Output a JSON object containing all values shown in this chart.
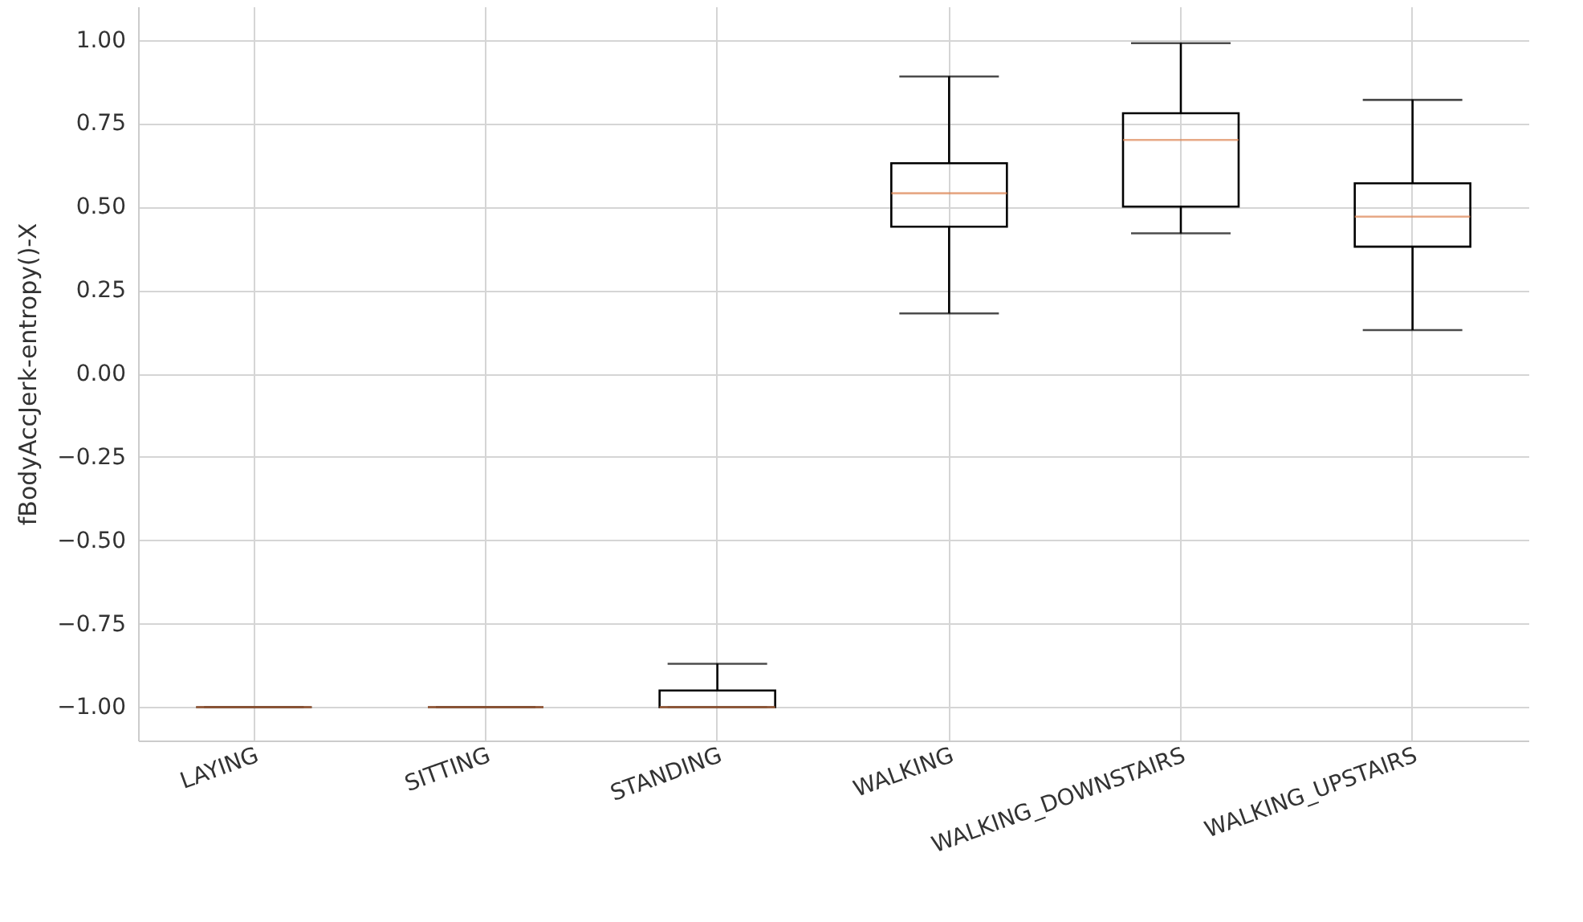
{
  "chart_data": {
    "type": "box",
    "ylabel": "fBodyAccJerk-entropy()-X",
    "categories": [
      "LAYING",
      "SITTING",
      "STANDING",
      "WALKING",
      "WALKING_DOWNSTAIRS",
      "WALKING_UPSTAIRS"
    ],
    "series": [
      {
        "color": "#dd8452",
        "boxes": [
          {
            "low": -1,
            "q1": -1,
            "median": -1,
            "q3": -1,
            "high": -1
          },
          {
            "low": -1,
            "q1": -1,
            "median": -1,
            "q3": -1,
            "high": -1
          },
          {
            "low": -1,
            "q1": -1,
            "median": -1,
            "q3": -0.95,
            "high": -0.87
          },
          {
            "low": 0.18,
            "q1": 0.44,
            "median": 0.54,
            "q3": 0.63,
            "high": 0.89
          },
          {
            "low": 0.42,
            "q1": 0.5,
            "median": 0.7,
            "q3": 0.78,
            "high": 0.99
          },
          {
            "low": 0.13,
            "q1": 0.38,
            "median": 0.47,
            "q3": 0.57,
            "high": 0.82
          }
        ]
      }
    ],
    "ylim": [
      -1.1,
      1.1
    ],
    "yticks": [
      {
        "value": -1,
        "label": "−1.00"
      },
      {
        "value": -0.75,
        "label": "−0.75"
      },
      {
        "value": -0.5,
        "label": "−0.50"
      },
      {
        "value": -0.25,
        "label": "−0.25"
      },
      {
        "value": 0,
        "label": "0.00"
      },
      {
        "value": 0.25,
        "label": "0.25"
      },
      {
        "value": 0.5,
        "label": "0.50"
      },
      {
        "value": 0.75,
        "label": "0.75"
      },
      {
        "value": 1,
        "label": "1.00"
      }
    ],
    "grid": true
  }
}
